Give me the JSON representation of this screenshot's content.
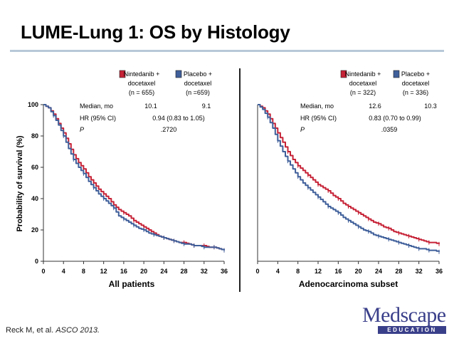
{
  "slide": {
    "title": "LUME-Lung 1: OS by Histology",
    "citation_author": "Reck M, et al.",
    "citation_source": "ASCO 2013.",
    "logo": {
      "word": "Medscape",
      "sub": "EDUCATION"
    }
  },
  "colors": {
    "nintedanib": "#c62236",
    "placebo": "#3f5f9a",
    "rule": "#b8c9d8",
    "logo": "#3a3f8a"
  },
  "chart_data": [
    {
      "type": "line",
      "panel": "All patients",
      "xlabel": "All patients",
      "ylabel": "Probability of survival (%)",
      "xlim": [
        0,
        36
      ],
      "ylim": [
        0,
        100
      ],
      "xticks": [
        "0",
        "4",
        "8",
        "12",
        "16",
        "20",
        "24",
        "28",
        "32",
        "36"
      ],
      "yticks": [
        "0",
        "20",
        "40",
        "60",
        "80",
        "100"
      ],
      "legend": [
        {
          "label_lines": [
            "Nintedanib +",
            "docetaxel",
            "(n = 655)"
          ],
          "color": "#c62236"
        },
        {
          "label_lines": [
            "Placebo +",
            "docetaxel",
            "(n =659)"
          ],
          "color": "#3f5f9a"
        }
      ],
      "stats": {
        "median_label": "Median, mo",
        "median_nintedanib": "10.1",
        "median_placebo": "9.1",
        "hr_label": "HR (95% CI)",
        "hr_value": "0.94 (0.83 to 1.05)",
        "p_label": "P",
        "p_value": ".2720"
      },
      "series": [
        {
          "name": "Nintedanib + docetaxel",
          "color": "#c62236",
          "x": [
            0,
            1,
            2,
            3,
            4,
            5,
            6,
            7,
            8,
            9,
            10,
            11,
            12,
            13,
            14,
            15,
            16,
            17,
            18,
            19,
            20,
            21,
            22,
            23,
            24,
            25,
            26,
            27,
            28,
            29,
            30,
            31,
            32,
            33,
            34,
            35,
            36
          ],
          "y": [
            100,
            98,
            94,
            88,
            82,
            75,
            68,
            63,
            59,
            54,
            50,
            46,
            43,
            40,
            36,
            33,
            31,
            29,
            26,
            24,
            22,
            20,
            18,
            16,
            15,
            14,
            13,
            12,
            12,
            11,
            10,
            10,
            10,
            9,
            9,
            8,
            7
          ]
        },
        {
          "name": "Placebo + docetaxel",
          "color": "#3f5f9a",
          "x": [
            0,
            1,
            2,
            3,
            4,
            5,
            6,
            7,
            8,
            9,
            10,
            11,
            12,
            13,
            14,
            15,
            16,
            17,
            18,
            19,
            20,
            21,
            22,
            23,
            24,
            25,
            26,
            27,
            28,
            29,
            30,
            31,
            32,
            33,
            34,
            35,
            36
          ],
          "y": [
            100,
            98,
            93,
            87,
            80,
            72,
            65,
            60,
            56,
            51,
            47,
            43,
            40,
            37,
            34,
            29,
            27,
            25,
            23,
            21,
            20,
            18,
            17,
            16,
            15,
            14,
            13,
            12,
            11,
            11,
            10,
            10,
            9,
            9,
            9,
            8,
            7
          ]
        }
      ]
    },
    {
      "type": "line",
      "panel": "Adenocarcinoma subset",
      "xlabel": "Adenocarcinoma subset",
      "xlim": [
        0,
        36
      ],
      "ylim": [
        0,
        100
      ],
      "xticks": [
        "0",
        "4",
        "8",
        "12",
        "16",
        "20",
        "24",
        "28",
        "32",
        "36"
      ],
      "legend": [
        {
          "label_lines": [
            "Nintedanib +",
            "docetaxel",
            "(n = 322)"
          ],
          "color": "#c62236"
        },
        {
          "label_lines": [
            "Placebo +",
            "docetaxel",
            "(n = 336)"
          ],
          "color": "#3f5f9a"
        }
      ],
      "stats": {
        "median_label": "Median, mo",
        "median_nintedanib": "12.6",
        "median_placebo": "10.3",
        "hr_label": "HR (95% CI)",
        "hr_value": "0.83 (0.70 to 0.99)",
        "p_label": "P",
        "p_value": ".0359"
      },
      "series": [
        {
          "name": "Nintedanib + docetaxel",
          "color": "#c62236",
          "x": [
            0,
            1,
            2,
            3,
            4,
            5,
            6,
            7,
            8,
            9,
            10,
            11,
            12,
            13,
            14,
            15,
            16,
            17,
            18,
            19,
            20,
            21,
            22,
            23,
            24,
            25,
            26,
            27,
            28,
            29,
            30,
            31,
            32,
            33,
            34,
            35,
            36
          ],
          "y": [
            100,
            98,
            94,
            88,
            82,
            76,
            70,
            65,
            61,
            58,
            55,
            52,
            49,
            47,
            45,
            42,
            40,
            37,
            35,
            33,
            31,
            29,
            27,
            25,
            24,
            22,
            21,
            19,
            18,
            17,
            16,
            15,
            14,
            13,
            12,
            12,
            11
          ]
        },
        {
          "name": "Placebo + docetaxel",
          "color": "#3f5f9a",
          "x": [
            0,
            1,
            2,
            3,
            4,
            5,
            6,
            7,
            8,
            9,
            10,
            11,
            12,
            13,
            14,
            15,
            16,
            17,
            18,
            19,
            20,
            21,
            22,
            23,
            24,
            25,
            26,
            27,
            28,
            29,
            30,
            31,
            32,
            33,
            34,
            35,
            36
          ],
          "y": [
            100,
            97,
            92,
            85,
            77,
            70,
            64,
            59,
            54,
            50,
            47,
            44,
            41,
            38,
            35,
            33,
            31,
            28,
            26,
            24,
            22,
            20,
            19,
            17,
            16,
            15,
            14,
            13,
            12,
            11,
            10,
            9,
            8,
            8,
            7,
            7,
            6
          ]
        }
      ]
    }
  ]
}
